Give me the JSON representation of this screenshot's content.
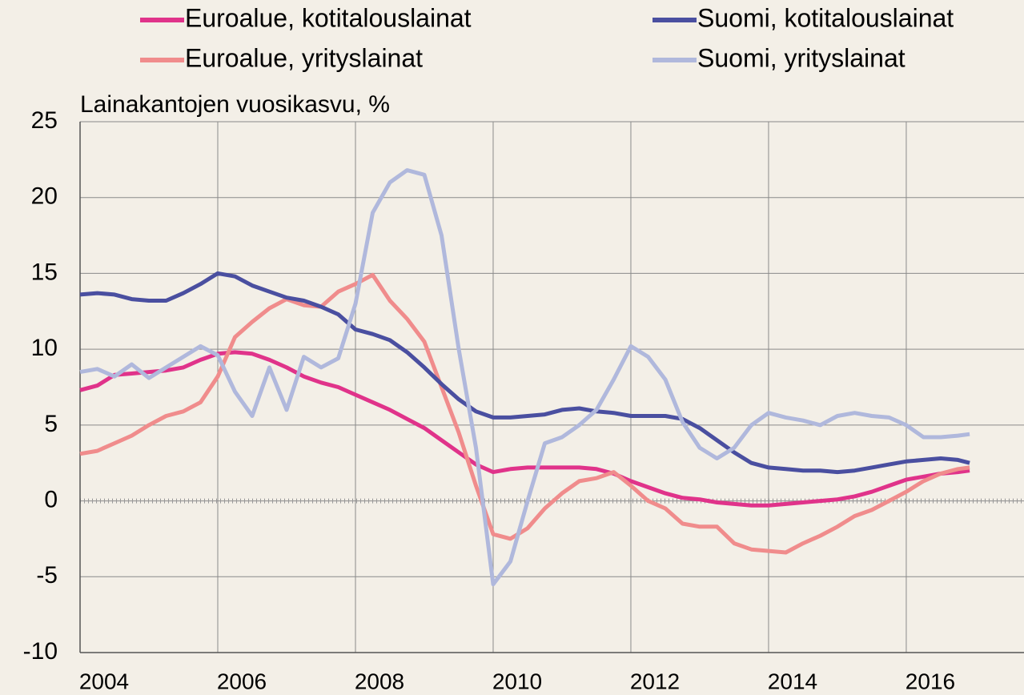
{
  "chart_data": {
    "type": "line",
    "y_label": "Lainakantojen vuosikasvu, %",
    "x": [
      2004,
      2004.25,
      2004.5,
      2004.75,
      2005,
      2005.25,
      2005.5,
      2005.75,
      2006,
      2006.25,
      2006.5,
      2006.75,
      2007,
      2007.25,
      2007.5,
      2007.75,
      2008,
      2008.25,
      2008.5,
      2008.75,
      2009,
      2009.25,
      2009.5,
      2009.75,
      2010,
      2010.25,
      2010.5,
      2010.75,
      2011,
      2011.25,
      2011.5,
      2011.75,
      2012,
      2012.25,
      2012.5,
      2012.75,
      2013,
      2013.25,
      2013.5,
      2013.75,
      2014,
      2014.25,
      2014.5,
      2014.75,
      2015,
      2015.25,
      2015.5,
      2015.75,
      2016,
      2016.25,
      2016.5,
      2016.75,
      2016.92
    ],
    "series": [
      {
        "name": "Euroalue, kotitalouslainat",
        "color": "#e0338a",
        "values": [
          7.3,
          7.6,
          8.3,
          8.4,
          8.5,
          8.6,
          8.8,
          9.3,
          9.7,
          9.8,
          9.7,
          9.3,
          8.8,
          8.2,
          7.8,
          7.5,
          7.0,
          6.5,
          6.0,
          5.4,
          4.8,
          4.0,
          3.2,
          2.4,
          1.9,
          2.1,
          2.2,
          2.2,
          2.2,
          2.2,
          2.1,
          1.8,
          1.3,
          0.9,
          0.5,
          0.2,
          0.1,
          -0.1,
          -0.2,
          -0.3,
          -0.3,
          -0.2,
          -0.1,
          0.0,
          0.1,
          0.3,
          0.6,
          1.0,
          1.4,
          1.6,
          1.8,
          1.9,
          2.0
        ]
      },
      {
        "name": "Euroalue, yrityslainat",
        "color": "#f08c8c",
        "values": [
          3.1,
          3.3,
          3.8,
          4.3,
          5.0,
          5.6,
          5.9,
          6.5,
          8.2,
          10.8,
          11.8,
          12.7,
          13.3,
          12.9,
          12.8,
          13.8,
          14.3,
          14.9,
          13.2,
          12.0,
          10.5,
          7.5,
          4.5,
          1.0,
          -2.2,
          -2.5,
          -1.8,
          -0.5,
          0.5,
          1.3,
          1.5,
          1.9,
          1.0,
          0.0,
          -0.5,
          -1.5,
          -1.7,
          -1.7,
          -2.8,
          -3.2,
          -3.3,
          -3.4,
          -2.8,
          -2.3,
          -1.7,
          -1.0,
          -0.6,
          0.0,
          0.6,
          1.3,
          1.8,
          2.1,
          2.2
        ]
      },
      {
        "name": "Suomi, kotitalouslainat",
        "color": "#4a4fa0",
        "values": [
          13.6,
          13.7,
          13.6,
          13.3,
          13.2,
          13.2,
          13.7,
          14.3,
          15.0,
          14.8,
          14.2,
          13.8,
          13.4,
          13.2,
          12.8,
          12.3,
          11.3,
          11.0,
          10.6,
          9.8,
          8.8,
          7.7,
          6.7,
          5.9,
          5.5,
          5.5,
          5.6,
          5.7,
          6.0,
          6.1,
          5.9,
          5.8,
          5.6,
          5.6,
          5.6,
          5.4,
          4.8,
          4.0,
          3.2,
          2.5,
          2.2,
          2.1,
          2.0,
          2.0,
          1.9,
          2.0,
          2.2,
          2.4,
          2.6,
          2.7,
          2.8,
          2.7,
          2.5
        ]
      },
      {
        "name": "Suomi, yrityslainat",
        "color": "#b0b8dc",
        "values": [
          8.5,
          8.7,
          8.2,
          9.0,
          8.1,
          8.8,
          9.5,
          10.2,
          9.6,
          7.2,
          5.6,
          8.8,
          6.0,
          9.5,
          8.8,
          9.4,
          13.0,
          19.0,
          21.0,
          21.8,
          21.5,
          17.5,
          10.0,
          3.5,
          -5.5,
          -4.0,
          0.0,
          3.8,
          4.2,
          5.0,
          6.0,
          8.0,
          10.2,
          9.5,
          8.0,
          5.2,
          3.5,
          2.8,
          3.5,
          5.0,
          5.8,
          5.5,
          5.3,
          5.0,
          5.6,
          5.8,
          5.6,
          5.5,
          5.0,
          4.2,
          4.2,
          4.3,
          4.4
        ]
      }
    ],
    "xlim": [
      2004,
      2017.71
    ],
    "xticks": [
      2004,
      2006,
      2008,
      2010,
      2012,
      2014,
      2016
    ],
    "ylim": [
      -10,
      25
    ],
    "yticks": [
      -10,
      -5,
      0,
      5,
      10,
      15,
      20,
      25
    ],
    "grid": true
  }
}
